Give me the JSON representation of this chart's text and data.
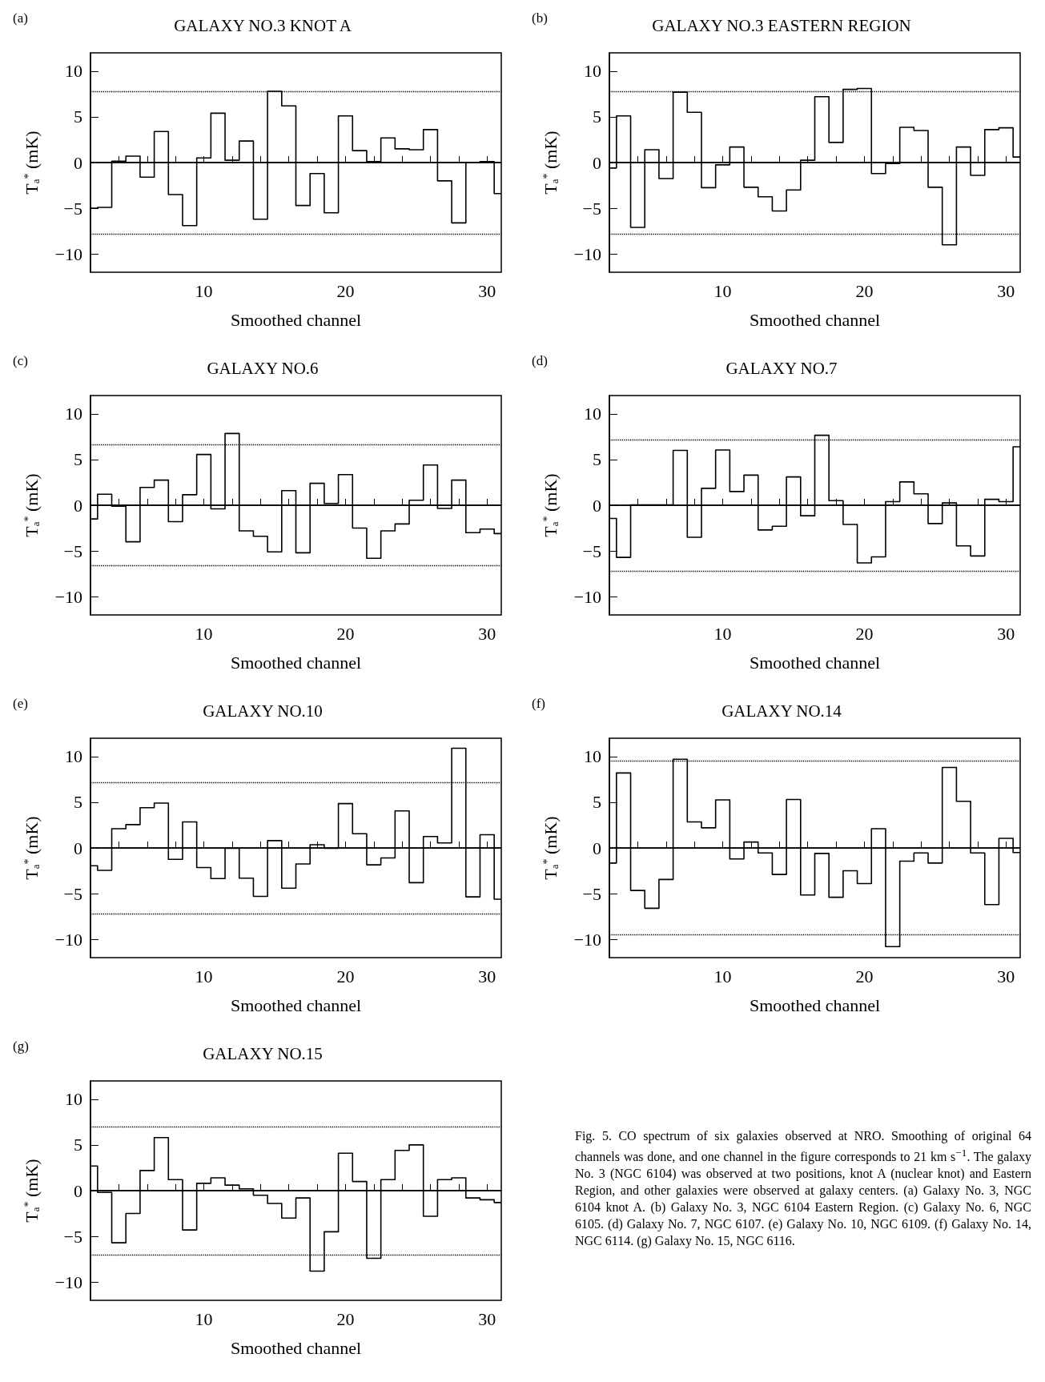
{
  "chart_data": [
    {
      "type": "step",
      "title": "GALAXY NO.3 KNOT A",
      "xlabel": "Smoothed channel",
      "ylabel": "T$_{a}$$^{*}$ (mK)",
      "annotations": [
        "(a)"
      ],
      "x": [
        2,
        3,
        4,
        5,
        6,
        7,
        8,
        9,
        10,
        11,
        12,
        13,
        14,
        15,
        16,
        17,
        18,
        19,
        20,
        21,
        22,
        23,
        24,
        25,
        26,
        27,
        28,
        29,
        30,
        31
      ],
      "series": [
        {
          "color": "#000000",
          "values": [
            -5.0,
            -4.9,
            0.15,
            0.7,
            -1.6,
            3.4,
            -3.5,
            -6.9,
            0.5,
            5.4,
            0.25,
            2.35,
            -6.2,
            7.8,
            6.2,
            -4.7,
            -1.2,
            -5.5,
            5.1,
            1.3,
            0.1,
            2.7,
            1.5,
            1.4,
            3.6,
            -2.0,
            -6.6,
            0,
            0.1,
            -3.4
          ]
        }
      ],
      "xlim": [
        2,
        31
      ],
      "xticks": [
        {
          "value": 4,
          "label": null
        },
        {
          "value": 6,
          "label": null
        },
        {
          "value": 8,
          "label": null
        },
        10,
        {
          "value": 12,
          "label": null
        },
        {
          "value": 14,
          "label": null
        },
        {
          "value": 16,
          "label": null
        },
        {
          "value": 18,
          "label": null
        },
        20,
        {
          "value": 22,
          "label": null
        },
        {
          "value": 24,
          "label": null
        },
        {
          "value": 26,
          "label": null
        },
        {
          "value": 28,
          "label": null
        },
        30
      ],
      "ylim": [
        -12,
        12
      ],
      "yticks": [
        -10,
        -5,
        0,
        5,
        10
      ],
      "ref_lines": [
        {
          "axis": "y",
          "value": 0,
          "line_style": "solid"
        },
        {
          "axis": "y",
          "value": 7.8,
          "line_style": "dotted"
        },
        {
          "axis": "y",
          "value": -7.8,
          "line_style": "dotted"
        }
      ]
    },
    {
      "type": "step",
      "title": "GALAXY NO.3 EASTERN REGION",
      "xlabel": "Smoothed channel",
      "ylabel": "T$_{a}$$^{*}$ (mK)",
      "annotations": [
        "(b)"
      ],
      "x": [
        2,
        3,
        4,
        5,
        6,
        7,
        8,
        9,
        10,
        11,
        12,
        13,
        14,
        15,
        16,
        17,
        18,
        19,
        20,
        21,
        22,
        23,
        24,
        25,
        26,
        27,
        28,
        29,
        30,
        31
      ],
      "series": [
        {
          "color": "#000000",
          "values": [
            -0.6,
            5.1,
            -7.1,
            1.4,
            -1.75,
            7.7,
            5.5,
            -2.75,
            -0.25,
            1.7,
            -2.7,
            -3.75,
            -5.3,
            -3.0,
            0.25,
            7.2,
            2.2,
            8.0,
            8.1,
            -1.2,
            -0.1,
            3.85,
            3.5,
            -2.7,
            -9.0,
            1.7,
            -1.4,
            3.6,
            3.8,
            0.6
          ]
        }
      ],
      "xlim": [
        2,
        31
      ],
      "xticks": [
        {
          "value": 4,
          "label": null
        },
        {
          "value": 6,
          "label": null
        },
        {
          "value": 8,
          "label": null
        },
        10,
        {
          "value": 12,
          "label": null
        },
        {
          "value": 14,
          "label": null
        },
        {
          "value": 16,
          "label": null
        },
        {
          "value": 18,
          "label": null
        },
        20,
        {
          "value": 22,
          "label": null
        },
        {
          "value": 24,
          "label": null
        },
        {
          "value": 26,
          "label": null
        },
        {
          "value": 28,
          "label": null
        },
        30
      ],
      "ylim": [
        -12,
        12
      ],
      "yticks": [
        -10,
        -5,
        0,
        5,
        10
      ],
      "ref_lines": [
        {
          "axis": "y",
          "value": 0,
          "line_style": "solid"
        },
        {
          "axis": "y",
          "value": 7.8,
          "line_style": "dotted"
        },
        {
          "axis": "y",
          "value": -7.8,
          "line_style": "dotted"
        }
      ]
    },
    {
      "type": "step",
      "title": "GALAXY NO.6",
      "xlabel": "Smoothed channel",
      "ylabel": "T$_{a}$$^{*}$ (mK)",
      "annotations": [
        "(c)"
      ],
      "x": [
        2,
        3,
        4,
        5,
        6,
        7,
        8,
        9,
        10,
        11,
        12,
        13,
        14,
        15,
        16,
        17,
        18,
        19,
        20,
        21,
        22,
        23,
        24,
        25,
        26,
        27,
        28,
        29,
        30,
        31
      ],
      "series": [
        {
          "color": "#000000",
          "values": [
            -1.5,
            1.2,
            -0.1,
            -4.0,
            1.95,
            2.75,
            -1.8,
            1.15,
            5.55,
            -0.4,
            7.85,
            -2.8,
            -3.4,
            -5.1,
            1.6,
            -5.2,
            2.4,
            0.2,
            3.35,
            -2.5,
            -5.8,
            -2.8,
            -2.05,
            0.55,
            4.4,
            -0.35,
            2.75,
            -3.0,
            -2.6,
            -3.1
          ]
        }
      ],
      "xlim": [
        2,
        31
      ],
      "xticks": [
        {
          "value": 4,
          "label": null
        },
        {
          "value": 6,
          "label": null
        },
        {
          "value": 8,
          "label": null
        },
        10,
        {
          "value": 12,
          "label": null
        },
        {
          "value": 14,
          "label": null
        },
        {
          "value": 16,
          "label": null
        },
        {
          "value": 18,
          "label": null
        },
        20,
        {
          "value": 22,
          "label": null
        },
        {
          "value": 24,
          "label": null
        },
        {
          "value": 26,
          "label": null
        },
        {
          "value": 28,
          "label": null
        },
        30
      ],
      "ylim": [
        -12,
        12
      ],
      "yticks": [
        -10,
        -5,
        0,
        5,
        10
      ],
      "ref_lines": [
        {
          "axis": "y",
          "value": 0,
          "line_style": "solid"
        },
        {
          "axis": "y",
          "value": 6.6,
          "line_style": "dotted"
        },
        {
          "axis": "y",
          "value": -6.6,
          "line_style": "dotted"
        }
      ]
    },
    {
      "type": "step",
      "title": "GALAXY NO.7",
      "xlabel": "Smoothed channel",
      "ylabel": "T$_{a}$$^{*}$ (mK)",
      "annotations": [
        "(d)"
      ],
      "x": [
        2,
        3,
        4,
        5,
        6,
        7,
        8,
        9,
        10,
        11,
        12,
        13,
        14,
        15,
        16,
        17,
        18,
        19,
        20,
        21,
        22,
        23,
        24,
        25,
        26,
        27,
        28,
        29,
        30,
        31
      ],
      "series": [
        {
          "color": "#000000",
          "values": [
            -1.45,
            -5.7,
            0.05,
            0.05,
            0.05,
            6.0,
            -3.5,
            1.85,
            6.05,
            1.5,
            3.3,
            -2.7,
            -2.3,
            3.1,
            -1.15,
            7.65,
            0.5,
            -2.1,
            -6.3,
            -5.65,
            0.4,
            2.55,
            1.25,
            -2.0,
            0.25,
            -4.45,
            -5.55,
            0.65,
            0.4,
            6.4
          ]
        }
      ],
      "xlim": [
        2,
        31
      ],
      "xticks": [
        {
          "value": 4,
          "label": null
        },
        {
          "value": 6,
          "label": null
        },
        {
          "value": 8,
          "label": null
        },
        10,
        {
          "value": 12,
          "label": null
        },
        {
          "value": 14,
          "label": null
        },
        {
          "value": 16,
          "label": null
        },
        {
          "value": 18,
          "label": null
        },
        20,
        {
          "value": 22,
          "label": null
        },
        {
          "value": 24,
          "label": null
        },
        {
          "value": 26,
          "label": null
        },
        {
          "value": 28,
          "label": null
        },
        30
      ],
      "ylim": [
        -12,
        12
      ],
      "yticks": [
        -10,
        -5,
        0,
        5,
        10
      ],
      "ref_lines": [
        {
          "axis": "y",
          "value": 0,
          "line_style": "solid"
        },
        {
          "axis": "y",
          "value": 7.2,
          "line_style": "dotted"
        },
        {
          "axis": "y",
          "value": -7.2,
          "line_style": "dotted"
        }
      ]
    },
    {
      "type": "step",
      "title": "GALAXY NO.10",
      "xlabel": "Smoothed channel",
      "ylabel": "T$_{a}$$^{*}$ (mK)",
      "annotations": [
        "(e)"
      ],
      "x": [
        2,
        3,
        4,
        5,
        6,
        7,
        8,
        9,
        10,
        11,
        12,
        13,
        14,
        15,
        16,
        17,
        18,
        19,
        20,
        21,
        22,
        23,
        24,
        25,
        26,
        27,
        28,
        29,
        30,
        31
      ],
      "series": [
        {
          "color": "#000000",
          "values": [
            -1.95,
            -2.45,
            2.1,
            2.55,
            4.4,
            4.9,
            -1.25,
            2.85,
            -2.15,
            -3.35,
            -0.05,
            -3.3,
            -5.3,
            0.8,
            -4.4,
            -1.75,
            0.35,
            -0.05,
            4.85,
            1.55,
            -1.85,
            -1.1,
            4.05,
            -3.8,
            1.25,
            0.55,
            10.9,
            -5.35,
            1.45,
            -5.6
          ]
        }
      ],
      "xlim": [
        2,
        31
      ],
      "xticks": [
        {
          "value": 4,
          "label": null
        },
        {
          "value": 6,
          "label": null
        },
        {
          "value": 8,
          "label": null
        },
        10,
        {
          "value": 12,
          "label": null
        },
        {
          "value": 14,
          "label": null
        },
        {
          "value": 16,
          "label": null
        },
        {
          "value": 18,
          "label": null
        },
        20,
        {
          "value": 22,
          "label": null
        },
        {
          "value": 24,
          "label": null
        },
        {
          "value": 26,
          "label": null
        },
        {
          "value": 28,
          "label": null
        },
        30
      ],
      "ylim": [
        -12,
        12
      ],
      "yticks": [
        -10,
        -5,
        0,
        5,
        10
      ],
      "ref_lines": [
        {
          "axis": "y",
          "value": 0,
          "line_style": "solid"
        },
        {
          "axis": "y",
          "value": 7.2,
          "line_style": "dotted"
        },
        {
          "axis": "y",
          "value": -7.2,
          "line_style": "dotted"
        }
      ]
    },
    {
      "type": "step",
      "title": "GALAXY NO.14",
      "xlabel": "Smoothed channel",
      "ylabel": "T$_{a}$$^{*}$ (mK)",
      "annotations": [
        "(f)"
      ],
      "x": [
        2,
        3,
        4,
        5,
        6,
        7,
        8,
        9,
        10,
        11,
        12,
        13,
        14,
        15,
        16,
        17,
        18,
        19,
        20,
        21,
        22,
        23,
        24,
        25,
        26,
        27,
        28,
        29,
        30,
        31
      ],
      "series": [
        {
          "color": "#000000",
          "values": [
            -1.65,
            8.2,
            -4.65,
            -6.6,
            -3.45,
            9.7,
            2.85,
            2.2,
            5.25,
            -1.2,
            0.65,
            -0.55,
            -2.9,
            5.3,
            -5.15,
            -0.6,
            -5.4,
            -2.5,
            -3.9,
            2.1,
            -10.8,
            -1.45,
            -0.55,
            -1.65,
            8.8,
            5.1,
            -0.55,
            -6.2,
            1.05,
            -0.5
          ]
        }
      ],
      "xlim": [
        2,
        31
      ],
      "xticks": [
        {
          "value": 4,
          "label": null
        },
        {
          "value": 6,
          "label": null
        },
        {
          "value": 8,
          "label": null
        },
        10,
        {
          "value": 12,
          "label": null
        },
        {
          "value": 14,
          "label": null
        },
        {
          "value": 16,
          "label": null
        },
        {
          "value": 18,
          "label": null
        },
        20,
        {
          "value": 22,
          "label": null
        },
        {
          "value": 24,
          "label": null
        },
        {
          "value": 26,
          "label": null
        },
        {
          "value": 28,
          "label": null
        },
        30
      ],
      "ylim": [
        -12,
        12
      ],
      "yticks": [
        -10,
        -5,
        0,
        5,
        10
      ],
      "ref_lines": [
        {
          "axis": "y",
          "value": 0,
          "line_style": "solid"
        },
        {
          "axis": "y",
          "value": 9.5,
          "line_style": "dotted"
        },
        {
          "axis": "y",
          "value": -9.5,
          "line_style": "dotted"
        }
      ]
    },
    {
      "type": "step",
      "title": "GALAXY NO.15",
      "xlabel": "Smoothed channel",
      "ylabel": "T$_{a}$$^{*}$ (mK)",
      "annotations": [
        "(g)",
        "Fig. 5.  CO spectrum of six galaxies observed at NRO. Smoothing of original 64 channels was done, and one channel in the figure corresponds to 21 km s$^{−1}$. The galaxy No. 3 (NGC 6104) was observed at two positions, knot A (nuclear knot) and Eastern Region, and other galaxies were observed at galaxy centers. (a) Galaxy No. 3, NGC 6104 knot A. (b) Galaxy No. 3, NGC 6104 Eastern Region. (c) Galaxy No. 6, NGC 6105. (d) Galaxy No. 7, NGC 6107. (e) Galaxy No. 10, NGC 6109. (f) Galaxy No. 14, NGC 6114. (g) Galaxy No. 15, NGC 6116."
      ],
      "x": [
        2,
        3,
        4,
        5,
        6,
        7,
        8,
        9,
        10,
        11,
        12,
        13,
        14,
        15,
        16,
        17,
        18,
        19,
        20,
        21,
        22,
        23,
        24,
        25,
        26,
        27,
        28,
        29,
        30,
        31
      ],
      "series": [
        {
          "color": "#000000",
          "values": [
            2.7,
            -0.2,
            -5.7,
            -2.5,
            2.2,
            5.8,
            1.2,
            -4.3,
            0.8,
            1.4,
            0.6,
            0.2,
            -0.5,
            -1.4,
            -3.0,
            -0.8,
            -8.8,
            -4.5,
            4.1,
            1.0,
            -7.4,
            1.2,
            4.4,
            5.0,
            -2.8,
            1.2,
            1.4,
            -0.8,
            -1.0,
            -1.3
          ]
        }
      ],
      "xlim": [
        2,
        31
      ],
      "xticks": [
        {
          "value": 4,
          "label": null
        },
        {
          "value": 6,
          "label": null
        },
        {
          "value": 8,
          "label": null
        },
        10,
        {
          "value": 12,
          "label": null
        },
        {
          "value": 14,
          "label": null
        },
        {
          "value": 16,
          "label": null
        },
        {
          "value": 18,
          "label": null
        },
        20,
        {
          "value": 22,
          "label": null
        },
        {
          "value": 24,
          "label": null
        },
        {
          "value": 26,
          "label": null
        },
        {
          "value": 28,
          "label": null
        },
        30
      ],
      "ylim": [
        -12,
        12
      ],
      "yticks": [
        -10,
        -5,
        0,
        5,
        10
      ],
      "ref_lines": [
        {
          "axis": "y",
          "value": 0,
          "line_style": "solid"
        },
        {
          "axis": "y",
          "value": 7.0,
          "line_style": "dotted"
        },
        {
          "axis": "y",
          "value": -7.0,
          "line_style": "dotted"
        }
      ]
    }
  ]
}
